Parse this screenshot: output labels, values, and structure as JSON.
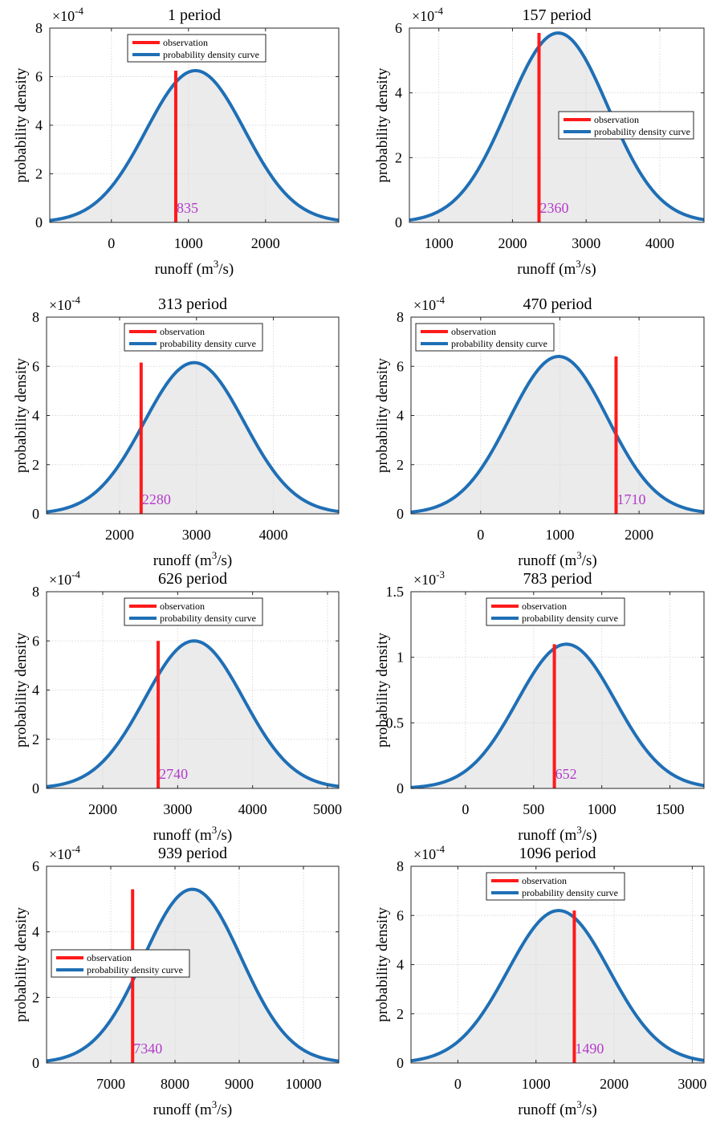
{
  "figure": {
    "background": "#ffffff"
  },
  "style": {
    "curve_color": "#1f6fb5",
    "obs_color": "#ff1a1a",
    "fill_color": "#ebebeb",
    "label_color": "#b23cc8",
    "grid_color": "#d9d9d9"
  },
  "chart_data": [
    {
      "type": "line",
      "title": "1 period",
      "xlabel_main": "runoff (m",
      "xlabel_sup": "3",
      "xlabel_end": "/s)",
      "ylabel": "probability density",
      "exponent_base": "×10",
      "exponent_power": "-4",
      "xlim": [
        -800,
        2950
      ],
      "ylim": [
        0,
        8
      ],
      "xticks": [
        0,
        1000,
        2000
      ],
      "xticklabels": [
        "0",
        "1000",
        "2000"
      ],
      "yticks": [
        0,
        2,
        4,
        6,
        8
      ],
      "yticklabels": [
        "0",
        "2",
        "4",
        "6",
        "8"
      ],
      "grid": true,
      "legend_position": "top-center",
      "series": [
        {
          "name": "observation",
          "x": [
            835,
            835
          ],
          "y": [
            0,
            6.25
          ]
        },
        {
          "name": "probability density curve",
          "distribution": "normal",
          "mean": 1090,
          "std": 640,
          "peak": 6.25
        }
      ],
      "observation_value": "835"
    },
    {
      "type": "line",
      "title": "157 period",
      "xlabel_main": "runoff (m",
      "xlabel_sup": "3",
      "xlabel_end": "/s)",
      "ylabel": "probability density",
      "exponent_base": "×10",
      "exponent_power": "-4",
      "xlim": [
        600,
        4600
      ],
      "ylim": [
        0,
        6
      ],
      "xticks": [
        1000,
        2000,
        3000,
        4000
      ],
      "xticklabels": [
        "1000",
        "2000",
        "3000",
        "4000"
      ],
      "yticks": [
        0,
        2,
        4,
        6
      ],
      "yticklabels": [
        "0",
        "2",
        "4",
        "6"
      ],
      "grid": true,
      "legend_position": "right",
      "series": [
        {
          "name": "observation",
          "x": [
            2360,
            2360
          ],
          "y": [
            0,
            5.85
          ]
        },
        {
          "name": "probability density curve",
          "distribution": "normal",
          "mean": 2620,
          "std": 680,
          "peak": 5.85
        }
      ],
      "observation_value": "2360"
    },
    {
      "type": "line",
      "title": "313 period",
      "xlabel_main": "runoff (m",
      "xlabel_sup": "3",
      "xlabel_end": "/s)",
      "ylabel": "probability density",
      "exponent_base": "×10",
      "exponent_power": "-4",
      "xlim": [
        1050,
        4850
      ],
      "ylim": [
        0,
        8
      ],
      "xticks": [
        2000,
        3000,
        4000
      ],
      "xticklabels": [
        "2000",
        "3000",
        "4000"
      ],
      "yticks": [
        0,
        2,
        4,
        6,
        8
      ],
      "yticklabels": [
        "0",
        "2",
        "4",
        "6",
        "8"
      ],
      "grid": true,
      "legend_position": "top-center",
      "series": [
        {
          "name": "observation",
          "x": [
            2280,
            2280
          ],
          "y": [
            0,
            6.15
          ]
        },
        {
          "name": "probability density curve",
          "distribution": "normal",
          "mean": 2970,
          "std": 650,
          "peak": 6.15
        }
      ],
      "observation_value": "2280"
    },
    {
      "type": "line",
      "title": "470 period",
      "xlabel_main": "runoff (m",
      "xlabel_sup": "3",
      "xlabel_end": "/s)",
      "ylabel": "probability density",
      "exponent_base": "×10",
      "exponent_power": "-4",
      "xlim": [
        -880,
        2820
      ],
      "ylim": [
        0,
        8
      ],
      "xticks": [
        0,
        1000,
        2000
      ],
      "xticklabels": [
        "0",
        "1000",
        "2000"
      ],
      "yticks": [
        0,
        2,
        4,
        6,
        8
      ],
      "yticklabels": [
        "0",
        "2",
        "4",
        "6",
        "8"
      ],
      "grid": true,
      "legend_position": "top-left",
      "series": [
        {
          "name": "observation",
          "x": [
            1710,
            1710
          ],
          "y": [
            0,
            6.4
          ]
        },
        {
          "name": "probability density curve",
          "distribution": "normal",
          "mean": 985,
          "std": 620,
          "peak": 6.4
        }
      ],
      "observation_value": "1710"
    },
    {
      "type": "line",
      "title": "626 period",
      "xlabel_main": "runoff (m",
      "xlabel_sup": "3",
      "xlabel_end": "/s)",
      "ylabel": "probability density",
      "exponent_base": "×10",
      "exponent_power": "-4",
      "xlim": [
        1250,
        5150
      ],
      "ylim": [
        0,
        8
      ],
      "xticks": [
        2000,
        3000,
        4000,
        5000
      ],
      "xticklabels": [
        "2000",
        "3000",
        "4000",
        "5000"
      ],
      "yticks": [
        0,
        2,
        4,
        6,
        8
      ],
      "yticklabels": [
        "0",
        "2",
        "4",
        "6",
        "8"
      ],
      "grid": true,
      "legend_position": "top-center",
      "series": [
        {
          "name": "observation",
          "x": [
            2740,
            2740
          ],
          "y": [
            0,
            6.0
          ]
        },
        {
          "name": "probability density curve",
          "distribution": "normal",
          "mean": 3220,
          "std": 660,
          "peak": 6.0
        }
      ],
      "observation_value": "2740"
    },
    {
      "type": "line",
      "title": "783 period",
      "xlabel_main": "runoff (m",
      "xlabel_sup": "3",
      "xlabel_end": "/s)",
      "ylabel": "probability density",
      "exponent_base": "×10",
      "exponent_power": "-3",
      "xlim": [
        -400,
        1750
      ],
      "ylim": [
        0,
        1.5
      ],
      "xticks": [
        0,
        500,
        1000,
        1500
      ],
      "xticklabels": [
        "0",
        "500",
        "1000",
        "1500"
      ],
      "yticks": [
        0,
        0.5,
        1,
        1.5
      ],
      "yticklabels": [
        "0",
        "0.5",
        "1",
        "1.5"
      ],
      "grid": true,
      "legend_position": "top-center",
      "series": [
        {
          "name": "observation",
          "x": [
            652,
            652
          ],
          "y": [
            0,
            1.1
          ]
        },
        {
          "name": "probability density curve",
          "distribution": "normal",
          "mean": 740,
          "std": 360,
          "peak": 1.1
        }
      ],
      "observation_value": "652"
    },
    {
      "type": "line",
      "title": "939 period",
      "xlabel_main": "runoff (m",
      "xlabel_sup": "3",
      "xlabel_end": "/s)",
      "ylabel": "probability density",
      "exponent_base": "×10",
      "exponent_power": "-4",
      "xlim": [
        6000,
        10550
      ],
      "ylim": [
        0,
        6
      ],
      "xticks": [
        7000,
        8000,
        9000,
        10000
      ],
      "xticklabels": [
        "7000",
        "8000",
        "9000",
        "10000"
      ],
      "yticks": [
        0,
        2,
        4,
        6
      ],
      "yticklabels": [
        "0",
        "2",
        "4",
        "6"
      ],
      "grid": true,
      "legend_position": "left",
      "series": [
        {
          "name": "observation",
          "x": [
            7340,
            7340
          ],
          "y": [
            0,
            5.3
          ]
        },
        {
          "name": "probability density curve",
          "distribution": "normal",
          "mean": 8270,
          "std": 760,
          "peak": 5.3
        }
      ],
      "observation_value": "7340"
    },
    {
      "type": "line",
      "title": "1096 period",
      "xlabel_main": "runoff (m",
      "xlabel_sup": "3",
      "xlabel_end": "/s)",
      "ylabel": "probability density",
      "exponent_base": "×10",
      "exponent_power": "-4",
      "xlim": [
        -600,
        3150
      ],
      "ylim": [
        0,
        8
      ],
      "xticks": [
        0,
        1000,
        2000,
        3000
      ],
      "xticklabels": [
        "0",
        "1000",
        "2000",
        "3000"
      ],
      "yticks": [
        0,
        2,
        4,
        6,
        8
      ],
      "yticklabels": [
        "0",
        "2",
        "4",
        "6",
        "8"
      ],
      "grid": true,
      "legend_position": "top-center",
      "series": [
        {
          "name": "observation",
          "x": [
            1490,
            1490
          ],
          "y": [
            0,
            6.2
          ]
        },
        {
          "name": "probability density curve",
          "distribution": "normal",
          "mean": 1290,
          "std": 650,
          "peak": 6.2
        }
      ],
      "observation_value": "1490"
    }
  ]
}
